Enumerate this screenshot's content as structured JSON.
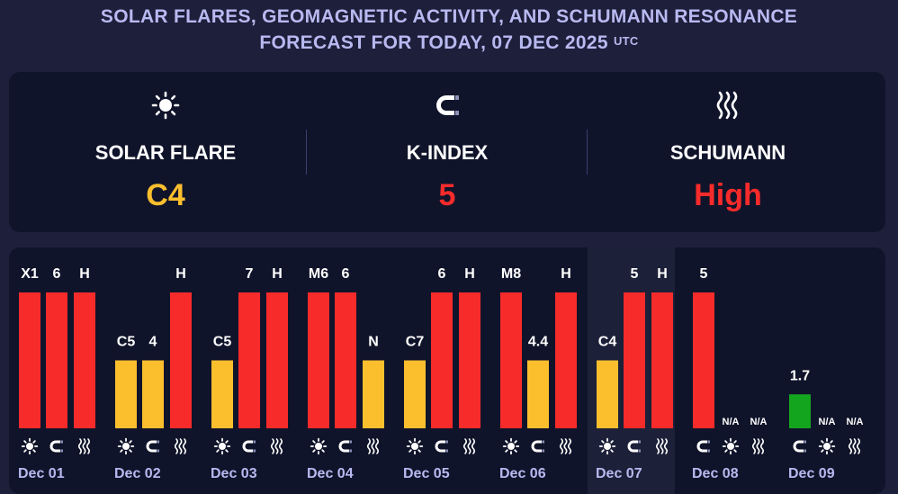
{
  "header": {
    "title_line1": "SOLAR FLARES, GEOMAGNETIC ACTIVITY, AND SCHUMANN RESONANCE",
    "title_line2": "FORECAST FOR TODAY, 07 DEC 2025",
    "title_sup": "UTC"
  },
  "summary": {
    "solar_flare": {
      "label": "SOLAR FLARE",
      "value": "C4",
      "color": "#fbbf2e",
      "icon": "sun-icon"
    },
    "k_index": {
      "label": "K-INDEX",
      "value": "5",
      "color": "#f82b2b",
      "icon": "magnet-icon"
    },
    "schumann": {
      "label": "SCHUMANN",
      "value": "High",
      "color": "#f82b2b",
      "icon": "waves-icon"
    }
  },
  "colors": {
    "red": "#f82b2b",
    "yellow": "#fbbf2e",
    "green": "#13a51e",
    "background": "#1d1f3b",
    "card": "#10142a",
    "today_highlight": "#1c2038",
    "date_label": "#b8b9f0"
  },
  "chart_data": {
    "type": "bar",
    "today": "Dec 07",
    "days": [
      {
        "date": "Dec 01",
        "bars": [
          {
            "kind": "solar",
            "icon": "sun-icon",
            "label": "X1",
            "level": 1.0,
            "color": "red"
          },
          {
            "kind": "kindex",
            "icon": "magnet-icon",
            "label": "6",
            "level": 1.0,
            "color": "red"
          },
          {
            "kind": "schumann",
            "icon": "waves-icon",
            "label": "H",
            "level": 1.0,
            "color": "red"
          }
        ]
      },
      {
        "date": "Dec 02",
        "bars": [
          {
            "kind": "solar",
            "icon": "sun-icon",
            "label": "C5",
            "level": 0.5,
            "color": "yellow"
          },
          {
            "kind": "kindex",
            "icon": "magnet-icon",
            "label": "4",
            "level": 0.5,
            "color": "yellow"
          },
          {
            "kind": "schumann",
            "icon": "waves-icon",
            "label": "H",
            "level": 1.0,
            "color": "red"
          }
        ]
      },
      {
        "date": "Dec 03",
        "bars": [
          {
            "kind": "solar",
            "icon": "sun-icon",
            "label": "C5",
            "level": 0.5,
            "color": "yellow"
          },
          {
            "kind": "kindex",
            "icon": "magnet-icon",
            "label": "7",
            "level": 1.0,
            "color": "red"
          },
          {
            "kind": "schumann",
            "icon": "waves-icon",
            "label": "H",
            "level": 1.0,
            "color": "red"
          }
        ]
      },
      {
        "date": "Dec 04",
        "bars": [
          {
            "kind": "solar",
            "icon": "sun-icon",
            "label": "M6",
            "level": 1.0,
            "color": "red"
          },
          {
            "kind": "kindex",
            "icon": "magnet-icon",
            "label": "6",
            "level": 1.0,
            "color": "red"
          },
          {
            "kind": "schumann",
            "icon": "waves-icon",
            "label": "N",
            "level": 0.5,
            "color": "yellow"
          }
        ]
      },
      {
        "date": "Dec 05",
        "bars": [
          {
            "kind": "solar",
            "icon": "sun-icon",
            "label": "C7",
            "level": 0.5,
            "color": "yellow"
          },
          {
            "kind": "kindex",
            "icon": "magnet-icon",
            "label": "6",
            "level": 1.0,
            "color": "red"
          },
          {
            "kind": "schumann",
            "icon": "waves-icon",
            "label": "H",
            "level": 1.0,
            "color": "red"
          }
        ]
      },
      {
        "date": "Dec 06",
        "bars": [
          {
            "kind": "solar",
            "icon": "sun-icon",
            "label": "M8",
            "level": 1.0,
            "color": "red"
          },
          {
            "kind": "kindex",
            "icon": "magnet-icon",
            "label": "4.4",
            "level": 0.5,
            "color": "yellow"
          },
          {
            "kind": "schumann",
            "icon": "waves-icon",
            "label": "H",
            "level": 1.0,
            "color": "red"
          }
        ]
      },
      {
        "date": "Dec 07",
        "bars": [
          {
            "kind": "solar",
            "icon": "sun-icon",
            "label": "C4",
            "level": 0.5,
            "color": "yellow"
          },
          {
            "kind": "kindex",
            "icon": "magnet-icon",
            "label": "5",
            "level": 1.0,
            "color": "red"
          },
          {
            "kind": "schumann",
            "icon": "waves-icon",
            "label": "H",
            "level": 1.0,
            "color": "red"
          }
        ]
      },
      {
        "date": "Dec 08",
        "bars": [
          {
            "kind": "kindex",
            "icon": "magnet-icon",
            "label": "5",
            "level": 1.0,
            "color": "red"
          },
          {
            "kind": "solar",
            "icon": "sun-icon",
            "label": "N/A",
            "level": 0,
            "color": "none"
          },
          {
            "kind": "schumann",
            "icon": "waves-icon",
            "label": "N/A",
            "level": 0,
            "color": "none"
          }
        ]
      },
      {
        "date": "Dec 09",
        "bars": [
          {
            "kind": "kindex",
            "icon": "magnet-icon",
            "label": "1.7",
            "level": 0.25,
            "color": "green"
          },
          {
            "kind": "solar",
            "icon": "sun-icon",
            "label": "N/A",
            "level": 0,
            "color": "none"
          },
          {
            "kind": "schumann",
            "icon": "waves-icon",
            "label": "N/A",
            "level": 0,
            "color": "none"
          }
        ]
      }
    ]
  }
}
